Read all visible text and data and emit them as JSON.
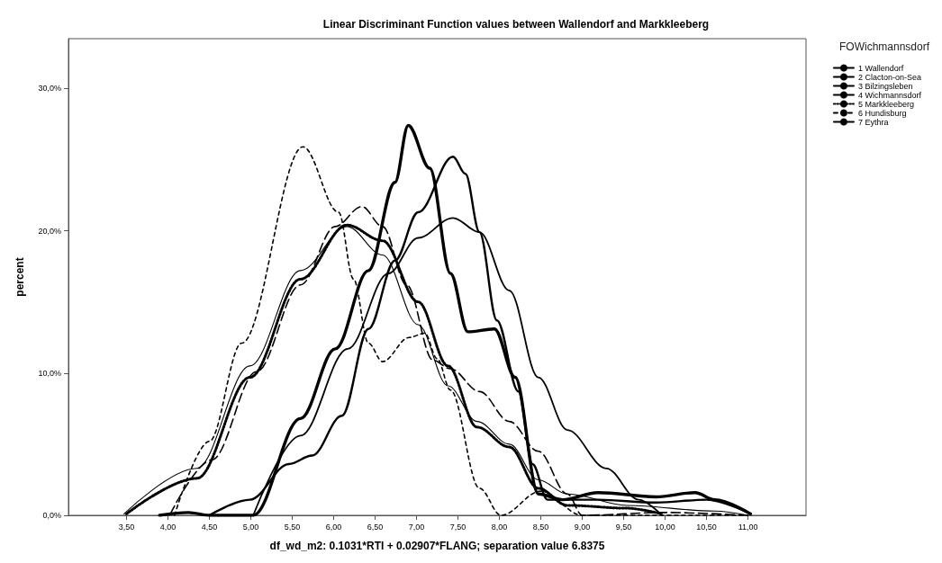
{
  "chart_data": {
    "type": "line",
    "title": "Linear Discriminant Function values between Wallendorf and Markkleeberg",
    "xlabel": "df_wd_m2: 0.1031*RTI + 0.02907*FLANG; separation value 6.8375",
    "ylabel": "percent",
    "legend_title": "FOWichmannsdorf",
    "legend": "right",
    "grid": false,
    "marker": "none",
    "xlim": [
      2.8,
      11.7
    ],
    "ylim": [
      0,
      33.5
    ],
    "xticks": [
      {
        "value": 3.5,
        "label": "3,50"
      },
      {
        "value": 4,
        "label": "4,00"
      },
      {
        "value": 4.5,
        "label": "4,50"
      },
      {
        "value": 5,
        "label": "5,00"
      },
      {
        "value": 5.5,
        "label": "5,50"
      },
      {
        "value": 6,
        "label": "6,00"
      },
      {
        "value": 6.5,
        "label": "6,50"
      },
      {
        "value": 7,
        "label": "7,00"
      },
      {
        "value": 7.5,
        "label": "7,50"
      },
      {
        "value": 8,
        "label": "8,00"
      },
      {
        "value": 8.5,
        "label": "8,50"
      },
      {
        "value": 9,
        "label": "9,00"
      },
      {
        "value": 9.5,
        "label": "9,50"
      },
      {
        "value": 10,
        "label": "10,00"
      },
      {
        "value": 10.5,
        "label": "10,50"
      },
      {
        "value": 11,
        "label": "11,00"
      }
    ],
    "yticks": [
      {
        "value": 0,
        "label": "0,0%"
      },
      {
        "value": 10,
        "label": "10,0%"
      },
      {
        "value": 20,
        "label": "20,0%"
      },
      {
        "value": 30,
        "label": "30,0%"
      }
    ],
    "series": [
      {
        "name": "1 Wallendorf",
        "color": "#000000",
        "line_style": "solid",
        "x": [
          5.03,
          5.6,
          6.17,
          6.66,
          7.02,
          7.44,
          7.76,
          8.12,
          8.47,
          8.82,
          9.29,
          9.68,
          9.96
        ],
        "values": [
          0,
          5.6,
          11.7,
          17.0,
          19.5,
          20.9,
          19.9,
          15.8,
          9.7,
          6.0,
          3.3,
          1.1,
          0
        ]
      },
      {
        "name": "2 Clacton-on-Sea",
        "color": "#000000",
        "line_style": "solid",
        "x": [
          4.5,
          4.99,
          5.46,
          5.74,
          6.1,
          6.42,
          6.74,
          7.02,
          7.44,
          7.59,
          7.76,
          7.97,
          8.23,
          8.4,
          8.58,
          9.19,
          9.89,
          10.5,
          11.03
        ],
        "values": [
          0,
          1.1,
          3.6,
          4.2,
          7.0,
          13.1,
          17.9,
          21.3,
          25.2,
          24.0,
          19.9,
          13.7,
          8.7,
          3.6,
          1.1,
          1.1,
          0.9,
          1.1,
          0.1
        ]
      },
      {
        "name": "3 Bilzingsleben",
        "color": "#000000",
        "line_style": "solid",
        "x": [
          3.47,
          4.35,
          4.99,
          5.6,
          6.16,
          6.59,
          7.02,
          7.38,
          7.73,
          8.12,
          8.47,
          8.82,
          9.54,
          10.6,
          11.0
        ],
        "values": [
          0.1,
          3.3,
          10.5,
          17.2,
          20.3,
          18.3,
          13.4,
          9.1,
          6.6,
          5.0,
          2.5,
          1.5,
          0.7,
          0.3,
          0
        ]
      },
      {
        "name": "4 Wichmannsdorf",
        "color": "#000000",
        "line_style": "solid",
        "x": [
          3.9,
          4.25,
          4.5,
          5.03,
          5.6,
          6.02,
          6.42,
          6.74,
          6.9,
          7.16,
          7.41,
          7.62,
          7.94,
          8.19,
          8.47,
          8.76,
          9.19,
          9.89,
          10.36,
          10.6,
          11.03
        ],
        "values": [
          0,
          0.2,
          0,
          0,
          6.8,
          11.7,
          17.2,
          23.4,
          27.4,
          24.4,
          17.0,
          12.9,
          13.1,
          9.7,
          1.5,
          1.1,
          1.6,
          1.3,
          1.6,
          1.1,
          0.1
        ]
      },
      {
        "name": "5 Markkleeberg",
        "color": "#000000",
        "line_style": "dotted",
        "x": [
          3.5,
          4.35,
          4.99,
          5.6,
          6.16,
          6.59,
          7.02,
          7.38,
          7.73,
          8.12,
          8.47,
          8.82,
          9.54,
          9.96
        ],
        "values": [
          0.1,
          2.6,
          9.7,
          16.6,
          20.4,
          19.3,
          15.0,
          10.5,
          6.2,
          4.8,
          1.9,
          0.7,
          0.5,
          0.1
        ]
      },
      {
        "name": "6 Hundisburg",
        "color": "#000000",
        "line_style": "dashed",
        "x": [
          4.08,
          4.5,
          4.89,
          5.63,
          6.06,
          6.24,
          6.42,
          6.59,
          6.91,
          7.1,
          7.25,
          7.41,
          7.76,
          8.02,
          8.5,
          9.0,
          11.0
        ],
        "values": [
          0,
          5.2,
          12.1,
          25.9,
          21.3,
          16.6,
          12.1,
          10.8,
          12.5,
          12.8,
          11.0,
          8.8,
          1.9,
          0,
          1.7,
          0,
          0
        ]
      },
      {
        "name": "7 Eythra",
        "color": "#000000",
        "line_style": "dashed",
        "x": [
          4.03,
          4.53,
          5.07,
          5.6,
          6.02,
          6.34,
          6.59,
          6.88,
          7.2,
          7.41,
          7.76,
          8.12,
          8.47,
          8.82,
          9.0,
          10.0,
          11.0
        ],
        "values": [
          0.1,
          3.9,
          10.1,
          16.2,
          20.3,
          21.7,
          20.3,
          16.2,
          10.9,
          10.3,
          8.7,
          6.6,
          4.5,
          1.5,
          0,
          0.2,
          0
        ]
      }
    ]
  }
}
